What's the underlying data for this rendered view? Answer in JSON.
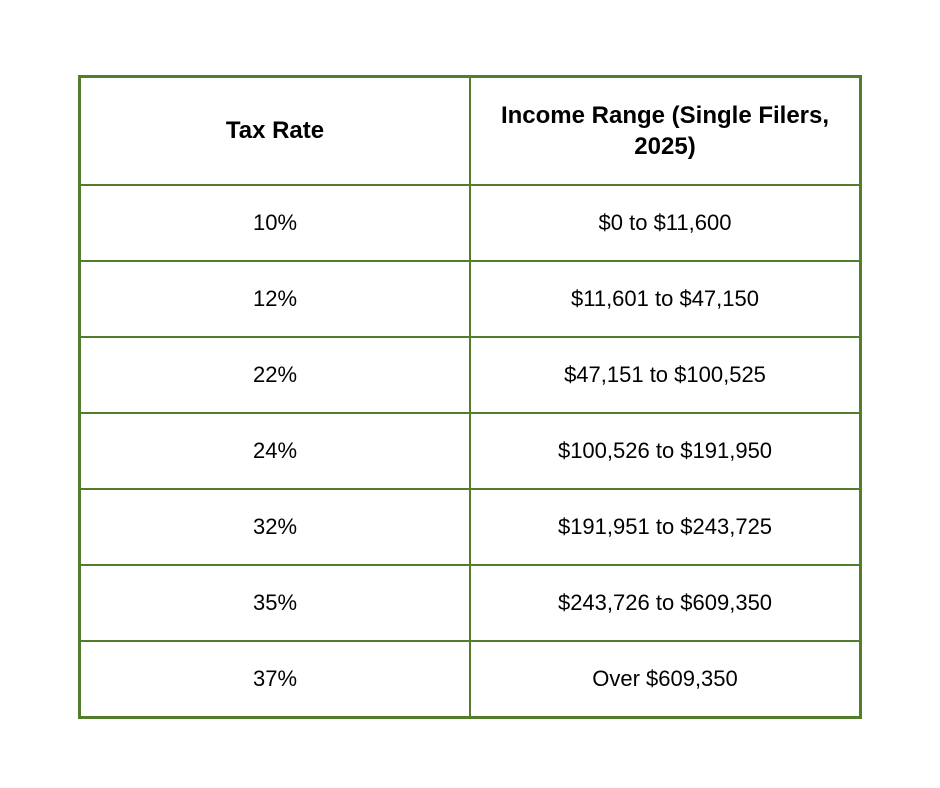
{
  "chart_data": {
    "type": "table",
    "title": "",
    "columns": [
      "Tax Rate",
      "Income Range (Single Filers, 2025)"
    ],
    "rows": [
      [
        "10%",
        "$0 to $11,600"
      ],
      [
        "12%",
        "$11,601 to $47,150"
      ],
      [
        "22%",
        "$47,151 to $100,525"
      ],
      [
        "24%",
        "$100,526 to $191,950"
      ],
      [
        "32%",
        "$191,951 to $243,725"
      ],
      [
        "35%",
        "$243,726 to $609,350"
      ],
      [
        "37%",
        "Over $609,350"
      ]
    ]
  },
  "styles": {
    "border_color": "#527d2b",
    "text_color": "#000000",
    "page_background": "#ffffff"
  }
}
